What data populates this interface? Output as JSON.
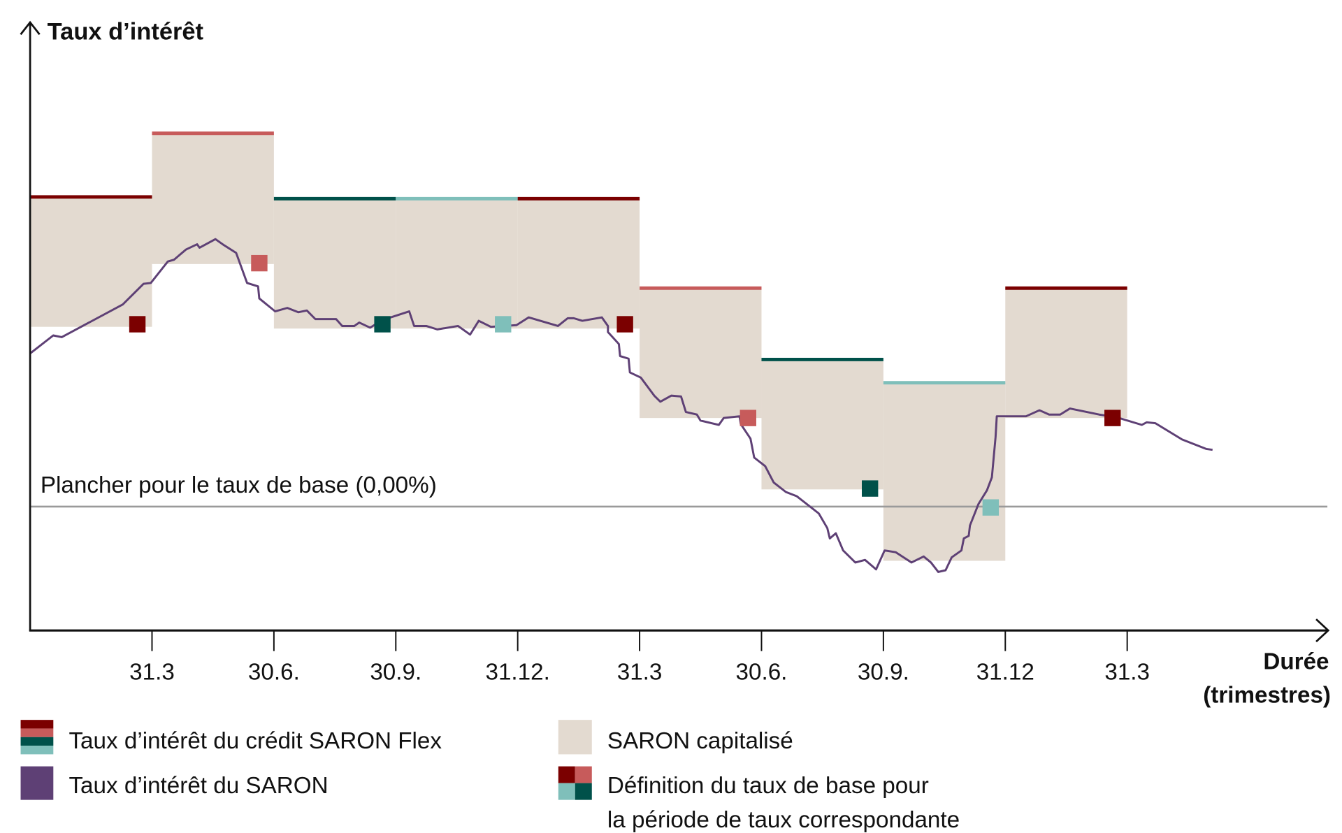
{
  "chart_data": {
    "type": "line",
    "title": "Taux d’intérêt",
    "ylabel": "Taux d’intérêt",
    "xlabel": [
      "Durée",
      "(trimestres)"
    ],
    "x_unit": "quarters since start",
    "y_unit": "relative rate (floor = 0.00)",
    "xlim": [
      0,
      10.65
    ],
    "ylim": [
      -1.44,
      5.64
    ],
    "grid": false,
    "x_ticks": [
      {
        "q": 1,
        "label": "31.3"
      },
      {
        "q": 2,
        "label": "30.6."
      },
      {
        "q": 3,
        "label": "30.9."
      },
      {
        "q": 4,
        "label": "31.12."
      },
      {
        "q": 5,
        "label": "31.3"
      },
      {
        "q": 6,
        "label": "30.6."
      },
      {
        "q": 7,
        "label": "30.9."
      },
      {
        "q": 8,
        "label": "31.12"
      },
      {
        "q": 9,
        "label": "31.3"
      }
    ],
    "floor": {
      "value": 0.0,
      "label": "Plancher pour le taux de base (0,00%)",
      "color": "#9a9a9a"
    },
    "periods": [
      {
        "start": 0,
        "end": 1,
        "flex_rate": 3.6,
        "capitalized_saron": 2.09,
        "color": "#7b0000"
      },
      {
        "start": 1,
        "end": 2,
        "flex_rate": 4.34,
        "capitalized_saron": 2.82,
        "color": "#c75b5b"
      },
      {
        "start": 2,
        "end": 3,
        "flex_rate": 3.58,
        "capitalized_saron": 2.07,
        "color": "#00514a"
      },
      {
        "start": 3,
        "end": 4,
        "flex_rate": 3.58,
        "capitalized_saron": 2.07,
        "color": "#7fbfba"
      },
      {
        "start": 4,
        "end": 5,
        "flex_rate": 3.58,
        "capitalized_saron": 2.07,
        "color": "#7b0000"
      },
      {
        "start": 5,
        "end": 6,
        "flex_rate": 2.54,
        "capitalized_saron": 1.03,
        "color": "#c75b5b"
      },
      {
        "start": 6,
        "end": 7,
        "flex_rate": 1.71,
        "capitalized_saron": 0.2,
        "color": "#00514a"
      },
      {
        "start": 7,
        "end": 8,
        "flex_rate": 1.44,
        "capitalized_saron": -0.63,
        "color": "#7fbfba"
      },
      {
        "start": 8,
        "end": 9,
        "flex_rate": 2.54,
        "capitalized_saron": 1.03,
        "color": "#7b0000"
      }
    ],
    "base_rate_markers": [
      {
        "q": 0.88,
        "value": 2.12,
        "color": "#7b0000"
      },
      {
        "q": 1.88,
        "value": 2.83,
        "color": "#c75b5b"
      },
      {
        "q": 2.89,
        "value": 2.12,
        "color": "#00514a"
      },
      {
        "q": 3.88,
        "value": 2.12,
        "color": "#7fbfba"
      },
      {
        "q": 4.88,
        "value": 2.12,
        "color": "#7b0000"
      },
      {
        "q": 5.89,
        "value": 1.03,
        "color": "#c75b5b"
      },
      {
        "q": 6.89,
        "value": 0.21,
        "color": "#00514a"
      },
      {
        "q": 7.88,
        "value": -0.01,
        "color": "#7fbfba"
      },
      {
        "q": 8.88,
        "value": 1.03,
        "color": "#7b0000"
      }
    ],
    "saron_series": {
      "name": "Taux d’intérêt du SARON",
      "color": "#5e4075",
      "points": [
        [
          0.0,
          1.78
        ],
        [
          0.19,
          1.99
        ],
        [
          0.26,
          1.97
        ],
        [
          0.76,
          2.35
        ],
        [
          0.93,
          2.59
        ],
        [
          0.99,
          2.6
        ],
        [
          1.13,
          2.85
        ],
        [
          1.18,
          2.87
        ],
        [
          1.28,
          2.99
        ],
        [
          1.37,
          3.05
        ],
        [
          1.39,
          3.01
        ],
        [
          1.52,
          3.11
        ],
        [
          1.59,
          3.04
        ],
        [
          1.69,
          2.95
        ],
        [
          1.78,
          2.6
        ],
        [
          1.87,
          2.56
        ],
        [
          1.88,
          2.42
        ],
        [
          2.01,
          2.27
        ],
        [
          2.11,
          2.31
        ],
        [
          2.2,
          2.26
        ],
        [
          2.27,
          2.28
        ],
        [
          2.34,
          2.18
        ],
        [
          2.51,
          2.18
        ],
        [
          2.56,
          2.1
        ],
        [
          2.66,
          2.1
        ],
        [
          2.7,
          2.14
        ],
        [
          2.79,
          2.08
        ],
        [
          2.89,
          2.17
        ],
        [
          2.98,
          2.21
        ],
        [
          3.11,
          2.27
        ],
        [
          3.15,
          2.1
        ],
        [
          3.25,
          2.1
        ],
        [
          3.34,
          2.06
        ],
        [
          3.51,
          2.1
        ],
        [
          3.61,
          2.0
        ],
        [
          3.68,
          2.16
        ],
        [
          3.78,
          2.09
        ],
        [
          3.99,
          2.11
        ],
        [
          4.09,
          2.2
        ],
        [
          4.33,
          2.1
        ],
        [
          4.41,
          2.19
        ],
        [
          4.46,
          2.19
        ],
        [
          4.53,
          2.16
        ],
        [
          4.69,
          2.2
        ],
        [
          4.74,
          2.1
        ],
        [
          4.74,
          2.03
        ],
        [
          4.83,
          1.89
        ],
        [
          4.84,
          1.75
        ],
        [
          4.91,
          1.72
        ],
        [
          4.92,
          1.56
        ],
        [
          5.01,
          1.5
        ],
        [
          5.12,
          1.29
        ],
        [
          5.17,
          1.22
        ],
        [
          5.26,
          1.29
        ],
        [
          5.34,
          1.28
        ],
        [
          5.38,
          1.1
        ],
        [
          5.47,
          1.07
        ],
        [
          5.5,
          1.0
        ],
        [
          5.65,
          0.95
        ],
        [
          5.69,
          1.03
        ],
        [
          5.82,
          1.05
        ],
        [
          5.83,
          0.96
        ],
        [
          5.91,
          0.79
        ],
        [
          5.94,
          0.57
        ],
        [
          6.03,
          0.47
        ],
        [
          6.1,
          0.28
        ],
        [
          6.2,
          0.17
        ],
        [
          6.29,
          0.12
        ],
        [
          6.47,
          -0.08
        ],
        [
          6.54,
          -0.25
        ],
        [
          6.56,
          -0.37
        ],
        [
          6.61,
          -0.31
        ],
        [
          6.67,
          -0.51
        ],
        [
          6.77,
          -0.65
        ],
        [
          6.85,
          -0.62
        ],
        [
          6.94,
          -0.73
        ],
        [
          7.01,
          -0.51
        ],
        [
          7.1,
          -0.53
        ],
        [
          7.23,
          -0.65
        ],
        [
          7.33,
          -0.58
        ],
        [
          7.39,
          -0.65
        ],
        [
          7.45,
          -0.76
        ],
        [
          7.51,
          -0.74
        ],
        [
          7.56,
          -0.59
        ],
        [
          7.64,
          -0.51
        ],
        [
          7.66,
          -0.37
        ],
        [
          7.7,
          -0.34
        ],
        [
          7.71,
          -0.22
        ],
        [
          7.78,
          0.03
        ],
        [
          7.85,
          0.19
        ],
        [
          7.89,
          0.34
        ],
        [
          7.92,
          0.81
        ],
        [
          7.93,
          1.05
        ],
        [
          8.17,
          1.05
        ],
        [
          8.28,
          1.12
        ],
        [
          8.36,
          1.07
        ],
        [
          8.45,
          1.07
        ],
        [
          8.53,
          1.14
        ],
        [
          8.77,
          1.07
        ],
        [
          8.91,
          1.04
        ],
        [
          9.12,
          0.95
        ],
        [
          9.16,
          0.98
        ],
        [
          9.23,
          0.97
        ],
        [
          9.45,
          0.78
        ],
        [
          9.65,
          0.67
        ],
        [
          9.7,
          0.66
        ]
      ]
    },
    "capitalized_fill_color": "#e3dad0",
    "legend": {
      "placement": "bottom",
      "items": [
        {
          "label": "Taux d’intérêt du crédit SARON Flex",
          "colors": [
            "#7b0000",
            "#c75b5b",
            "#00514a",
            "#7fbfba"
          ]
        },
        {
          "label": "SARON capitalisé",
          "colors": [
            "#e3dad0"
          ]
        },
        {
          "label": "Taux d’intérêt du SARON",
          "colors": [
            "#5e4075"
          ]
        },
        {
          "label_lines": [
            "Définition du taux de base pour",
            "la période de taux correspondante"
          ],
          "colors": [
            "#7b0000",
            "#c75b5b",
            "#7fbfba",
            "#00514a"
          ]
        }
      ]
    }
  }
}
